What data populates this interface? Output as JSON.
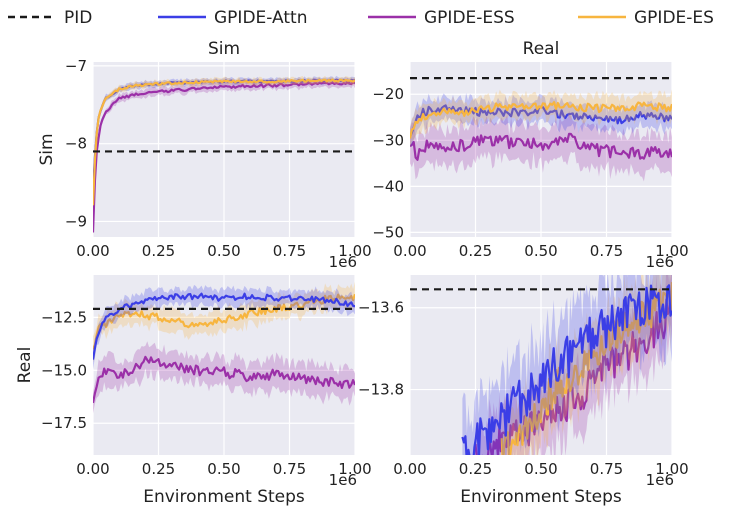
{
  "figure": {
    "legend": [
      {
        "label": "PID",
        "color": "#1a1a1a",
        "dashed": true
      },
      {
        "label": "GPIDE-Attn",
        "color": "#3b3ee6",
        "dashed": false
      },
      {
        "label": "GPIDE-ESS",
        "color": "#9b30a8",
        "dashed": false
      },
      {
        "label": "GPIDE-ES",
        "color": "#f7b53f",
        "dashed": false
      }
    ]
  },
  "chart_data": [
    {
      "type": "line",
      "panel": "top-left",
      "title": "Sim",
      "xlabel": "",
      "ylabel": "Sim",
      "x_offset_label": "1e6",
      "xlim": [
        0,
        1.0
      ],
      "ylim": [
        -9.2,
        -6.95
      ],
      "xticks": [
        0.0,
        0.25,
        0.5,
        0.75,
        1.0
      ],
      "xtick_labels": [
        "0.00",
        "0.25",
        "0.50",
        "0.75",
        "1.00"
      ],
      "yticks": [
        -9,
        -8,
        -7
      ],
      "ytick_labels": [
        "−9",
        "−8",
        "−7"
      ],
      "pid": -8.1,
      "series": [
        {
          "name": "GPIDE-Attn",
          "x": [
            0.0,
            0.01,
            0.02,
            0.03,
            0.05,
            0.08,
            0.1,
            0.15,
            0.2,
            0.3,
            0.4,
            0.5,
            0.6,
            0.7,
            0.8,
            0.9,
            1.0
          ],
          "values": [
            -8.6,
            -8.0,
            -7.7,
            -7.55,
            -7.42,
            -7.34,
            -7.3,
            -7.26,
            -7.24,
            -7.22,
            -7.21,
            -7.2,
            -7.2,
            -7.2,
            -7.19,
            -7.19,
            -7.19
          ],
          "band": 0.04
        },
        {
          "name": "GPIDE-ESS",
          "x": [
            0.0,
            0.01,
            0.02,
            0.03,
            0.05,
            0.08,
            0.1,
            0.15,
            0.2,
            0.3,
            0.4,
            0.5,
            0.6,
            0.7,
            0.8,
            0.9,
            1.0
          ],
          "values": [
            -9.15,
            -8.2,
            -7.95,
            -7.75,
            -7.6,
            -7.48,
            -7.42,
            -7.38,
            -7.35,
            -7.32,
            -7.29,
            -7.27,
            -7.26,
            -7.25,
            -7.24,
            -7.23,
            -7.22
          ],
          "band": 0.05
        },
        {
          "name": "GPIDE-ES",
          "x": [
            0.0,
            0.01,
            0.02,
            0.03,
            0.05,
            0.08,
            0.1,
            0.15,
            0.2,
            0.3,
            0.4,
            0.5,
            0.6,
            0.7,
            0.8,
            0.9,
            1.0
          ],
          "values": [
            -8.8,
            -8.0,
            -7.7,
            -7.55,
            -7.42,
            -7.34,
            -7.3,
            -7.26,
            -7.24,
            -7.22,
            -7.21,
            -7.2,
            -7.2,
            -7.2,
            -7.19,
            -7.19,
            -7.19
          ],
          "band": 0.04
        }
      ]
    },
    {
      "type": "line",
      "panel": "top-right",
      "title": "Real",
      "xlabel": "",
      "ylabel": "",
      "x_offset_label": "1e6",
      "xlim": [
        0,
        1.0
      ],
      "ylim": [
        -51,
        -13
      ],
      "xticks": [
        0.0,
        0.25,
        0.5,
        0.75,
        1.0
      ],
      "xtick_labels": [
        "0.00",
        "0.25",
        "0.50",
        "0.75",
        "1.00"
      ],
      "yticks": [
        -50,
        -40,
        -30,
        -20
      ],
      "ytick_labels": [
        "−50",
        "−40",
        "−30",
        "−20"
      ],
      "pid": -16.5,
      "series": [
        {
          "name": "GPIDE-ESS",
          "x": [
            0.0,
            0.03,
            0.05,
            0.1,
            0.2,
            0.3,
            0.4,
            0.5,
            0.6,
            0.7,
            0.8,
            0.9,
            1.0
          ],
          "values": [
            -30,
            -33.5,
            -31,
            -32,
            -31,
            -30,
            -30.5,
            -31,
            -29.5,
            -32,
            -32.5,
            -33,
            -32.5
          ],
          "band": 4.0
        },
        {
          "name": "GPIDE-Attn",
          "x": [
            0.0,
            0.03,
            0.05,
            0.1,
            0.2,
            0.3,
            0.4,
            0.5,
            0.6,
            0.7,
            0.8,
            0.9,
            1.0
          ],
          "values": [
            -28.5,
            -25,
            -24,
            -23,
            -23.5,
            -24,
            -24,
            -23.5,
            -24.5,
            -25,
            -25.5,
            -24.5,
            -25.5
          ],
          "band": 2.5
        },
        {
          "name": "GPIDE-ES",
          "x": [
            0.0,
            0.03,
            0.05,
            0.1,
            0.2,
            0.3,
            0.4,
            0.5,
            0.6,
            0.7,
            0.8,
            0.9,
            1.0
          ],
          "values": [
            -29,
            -26,
            -25,
            -24,
            -24,
            -23,
            -22.5,
            -22.5,
            -22.5,
            -23,
            -23,
            -22.5,
            -23
          ],
          "band": 2.5
        }
      ]
    },
    {
      "type": "line",
      "panel": "bottom-left",
      "title": "",
      "xlabel": "Environment Steps",
      "ylabel": "Real",
      "x_offset_label": "1e6",
      "xlim": [
        0,
        1.0
      ],
      "ylim": [
        -19,
        -10.5
      ],
      "xticks": [
        0.0,
        0.25,
        0.5,
        0.75,
        1.0
      ],
      "xtick_labels": [
        "0.00",
        "0.25",
        "0.50",
        "0.75",
        "1.00"
      ],
      "yticks": [
        -17.5,
        -15.0,
        -12.5
      ],
      "ytick_labels": [
        "−17.5",
        "−15.0",
        "−12.5"
      ],
      "pid": -12.1,
      "series": [
        {
          "name": "GPIDE-ESS",
          "x": [
            0.0,
            0.02,
            0.05,
            0.1,
            0.15,
            0.2,
            0.25,
            0.3,
            0.4,
            0.5,
            0.6,
            0.7,
            0.8,
            0.9,
            1.0
          ],
          "values": [
            -16.5,
            -15.2,
            -15.0,
            -15.2,
            -14.9,
            -14.5,
            -14.6,
            -14.8,
            -15.0,
            -15.1,
            -15.3,
            -15.2,
            -15.4,
            -15.6,
            -15.6
          ],
          "band": 0.7
        },
        {
          "name": "GPIDE-ES",
          "x": [
            0.0,
            0.02,
            0.05,
            0.1,
            0.15,
            0.2,
            0.25,
            0.3,
            0.4,
            0.5,
            0.6,
            0.7,
            0.8,
            0.9,
            1.0
          ],
          "values": [
            -14.0,
            -13.0,
            -12.8,
            -12.4,
            -12.3,
            -12.4,
            -12.5,
            -12.6,
            -12.9,
            -12.6,
            -12.3,
            -12.1,
            -11.9,
            -11.6,
            -11.5
          ],
          "band": 0.5
        },
        {
          "name": "GPIDE-Attn",
          "x": [
            0.0,
            0.02,
            0.05,
            0.1,
            0.15,
            0.2,
            0.25,
            0.3,
            0.4,
            0.5,
            0.6,
            0.7,
            0.8,
            0.9,
            1.0
          ],
          "values": [
            -14.5,
            -13.2,
            -12.6,
            -12.1,
            -11.9,
            -11.7,
            -11.6,
            -11.5,
            -11.5,
            -11.6,
            -11.5,
            -11.6,
            -11.6,
            -11.7,
            -11.9
          ],
          "band": 0.4
        }
      ]
    },
    {
      "type": "line",
      "panel": "bottom-right",
      "title": "",
      "xlabel": "Environment Steps",
      "ylabel": "",
      "x_offset_label": "1e6",
      "xlim": [
        0,
        1.0
      ],
      "ylim": [
        -13.96,
        -13.52
      ],
      "xticks": [
        0.0,
        0.25,
        0.5,
        0.75,
        1.0
      ],
      "xtick_labels": [
        "0.00",
        "0.25",
        "0.50",
        "0.75",
        "1.00"
      ],
      "yticks": [
        -13.8,
        -13.6
      ],
      "ytick_labels": [
        "−13.8",
        "−13.6"
      ],
      "pid": -13.555,
      "series": [
        {
          "name": "GPIDE-ESS",
          "x": [
            0.25,
            0.4,
            0.55,
            0.65,
            0.75,
            0.85,
            0.95,
            1.0
          ],
          "values": [
            -13.96,
            -13.92,
            -13.86,
            -13.82,
            -13.75,
            -13.7,
            -13.65,
            -13.6
          ],
          "band": 0.08
        },
        {
          "name": "GPIDE-ES",
          "x": [
            0.35,
            0.45,
            0.55,
            0.65,
            0.75,
            0.85,
            0.95,
            1.0
          ],
          "values": [
            -13.95,
            -13.88,
            -13.8,
            -13.74,
            -13.68,
            -13.63,
            -13.6,
            -13.58
          ],
          "band": 0.08
        },
        {
          "name": "GPIDE-Attn",
          "x": [
            0.2,
            0.3,
            0.4,
            0.5,
            0.6,
            0.7,
            0.8,
            0.9,
            1.0
          ],
          "values": [
            -13.96,
            -13.9,
            -13.84,
            -13.78,
            -13.72,
            -13.67,
            -13.62,
            -13.6,
            -13.6
          ],
          "band": 0.1
        }
      ]
    }
  ]
}
